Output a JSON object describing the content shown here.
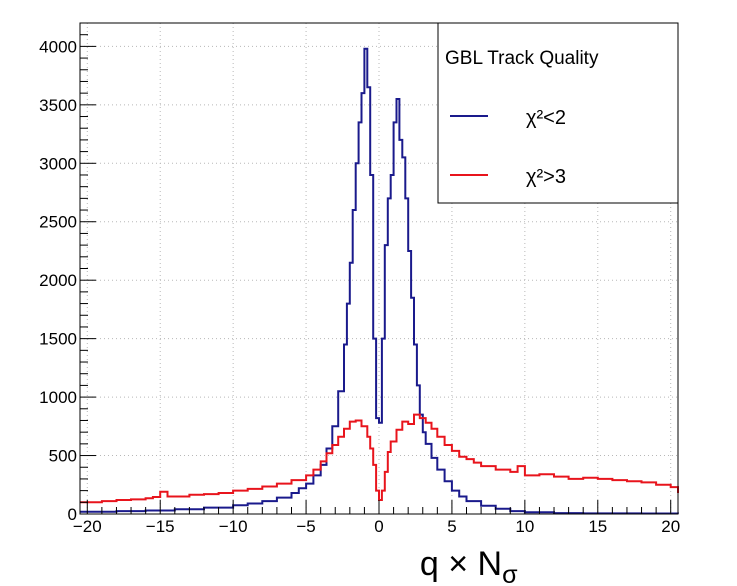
{
  "chart_data": {
    "type": "step",
    "title": "",
    "xlabel": {
      "base": "q × N",
      "sub": "σ"
    },
    "ylabel": "",
    "xlim": [
      -20.5,
      20.5
    ],
    "ylim": [
      0,
      4200
    ],
    "grid": true,
    "x_ticks": [
      -20,
      -15,
      -10,
      -5,
      0,
      5,
      10,
      15,
      20
    ],
    "x_tick_labels": [
      "−20",
      "−15",
      "−10",
      "−5",
      "0",
      "5",
      "10",
      "15",
      "20"
    ],
    "y_ticks": [
      0,
      500,
      1000,
      1500,
      2000,
      2500,
      3000,
      3500,
      4000
    ],
    "y_tick_labels": [
      "0",
      "500",
      "1000",
      "1500",
      "2000",
      "2500",
      "3000",
      "3500",
      "4000"
    ],
    "legend": {
      "position": "top-right",
      "title": "GBL Track Quality",
      "entries": [
        "χ²<2",
        "χ²>3"
      ]
    },
    "series": [
      {
        "name": "χ²<2",
        "color": "#1a1a8c",
        "points": [
          [
            -20.5,
            20
          ],
          [
            -18,
            25
          ],
          [
            -16,
            30
          ],
          [
            -14,
            40
          ],
          [
            -12,
            55
          ],
          [
            -10,
            75
          ],
          [
            -9,
            90
          ],
          [
            -8,
            110
          ],
          [
            -7,
            140
          ],
          [
            -6,
            180
          ],
          [
            -5.5,
            220
          ],
          [
            -5,
            260
          ],
          [
            -4.5,
            330
          ],
          [
            -4,
            420
          ],
          [
            -3.6,
            560
          ],
          [
            -3.2,
            750
          ],
          [
            -2.8,
            1050
          ],
          [
            -2.4,
            1450
          ],
          [
            -2.2,
            1800
          ],
          [
            -2.0,
            2150
          ],
          [
            -1.8,
            2600
          ],
          [
            -1.6,
            3000
          ],
          [
            -1.4,
            3350
          ],
          [
            -1.2,
            3600
          ],
          [
            -1.0,
            3980
          ],
          [
            -0.8,
            3650
          ],
          [
            -0.6,
            2900
          ],
          [
            -0.4,
            1500
          ],
          [
            -0.2,
            820
          ],
          [
            0,
            780
          ],
          [
            0.2,
            1500
          ],
          [
            0.4,
            2300
          ],
          [
            0.6,
            2700
          ],
          [
            0.8,
            2900
          ],
          [
            1.0,
            3350
          ],
          [
            1.2,
            3550
          ],
          [
            1.4,
            3200
          ],
          [
            1.6,
            3050
          ],
          [
            1.8,
            2700
          ],
          [
            2.0,
            2250
          ],
          [
            2.2,
            1850
          ],
          [
            2.4,
            1450
          ],
          [
            2.6,
            1100
          ],
          [
            2.8,
            850
          ],
          [
            3.0,
            700
          ],
          [
            3.2,
            600
          ],
          [
            3.6,
            480
          ],
          [
            4,
            380
          ],
          [
            4.5,
            280
          ],
          [
            5,
            200
          ],
          [
            5.5,
            150
          ],
          [
            6,
            110
          ],
          [
            7,
            70
          ],
          [
            8,
            45
          ],
          [
            9,
            25
          ],
          [
            10,
            15
          ],
          [
            12,
            8
          ],
          [
            14,
            5
          ],
          [
            16,
            5
          ],
          [
            18,
            4
          ],
          [
            20.5,
            3
          ]
        ]
      },
      {
        "name": "χ²>3",
        "color": "#e8141c",
        "points": [
          [
            -20.5,
            100
          ],
          [
            -19,
            110
          ],
          [
            -18,
            120
          ],
          [
            -17,
            125
          ],
          [
            -16,
            135
          ],
          [
            -15.5,
            145
          ],
          [
            -15,
            190
          ],
          [
            -14.5,
            150
          ],
          [
            -13,
            165
          ],
          [
            -12,
            170
          ],
          [
            -11,
            180
          ],
          [
            -10,
            200
          ],
          [
            -9,
            215
          ],
          [
            -8,
            235
          ],
          [
            -7,
            260
          ],
          [
            -6,
            290
          ],
          [
            -5,
            330
          ],
          [
            -4.5,
            380
          ],
          [
            -4,
            450
          ],
          [
            -3.6,
            520
          ],
          [
            -3.2,
            590
          ],
          [
            -2.8,
            660
          ],
          [
            -2.4,
            730
          ],
          [
            -2.0,
            790
          ],
          [
            -1.6,
            800
          ],
          [
            -1.2,
            750
          ],
          [
            -0.8,
            660
          ],
          [
            -0.6,
            560
          ],
          [
            -0.4,
            420
          ],
          [
            -0.2,
            200
          ],
          [
            0,
            120
          ],
          [
            0.2,
            200
          ],
          [
            0.4,
            360
          ],
          [
            0.6,
            530
          ],
          [
            0.8,
            620
          ],
          [
            1.2,
            720
          ],
          [
            1.6,
            790
          ],
          [
            2.0,
            770
          ],
          [
            2.4,
            850
          ],
          [
            2.8,
            820
          ],
          [
            3.2,
            780
          ],
          [
            3.6,
            730
          ],
          [
            4,
            660
          ],
          [
            4.5,
            590
          ],
          [
            5,
            540
          ],
          [
            5.5,
            490
          ],
          [
            6,
            470
          ],
          [
            6.5,
            440
          ],
          [
            7,
            410
          ],
          [
            8,
            380
          ],
          [
            9,
            360
          ],
          [
            9.5,
            410
          ],
          [
            10,
            330
          ],
          [
            11,
            340
          ],
          [
            12,
            320
          ],
          [
            13,
            300
          ],
          [
            14,
            310
          ],
          [
            15,
            300
          ],
          [
            16,
            290
          ],
          [
            17,
            280
          ],
          [
            18,
            270
          ],
          [
            19,
            250
          ],
          [
            20,
            230
          ],
          [
            20.5,
            180
          ]
        ]
      }
    ]
  }
}
